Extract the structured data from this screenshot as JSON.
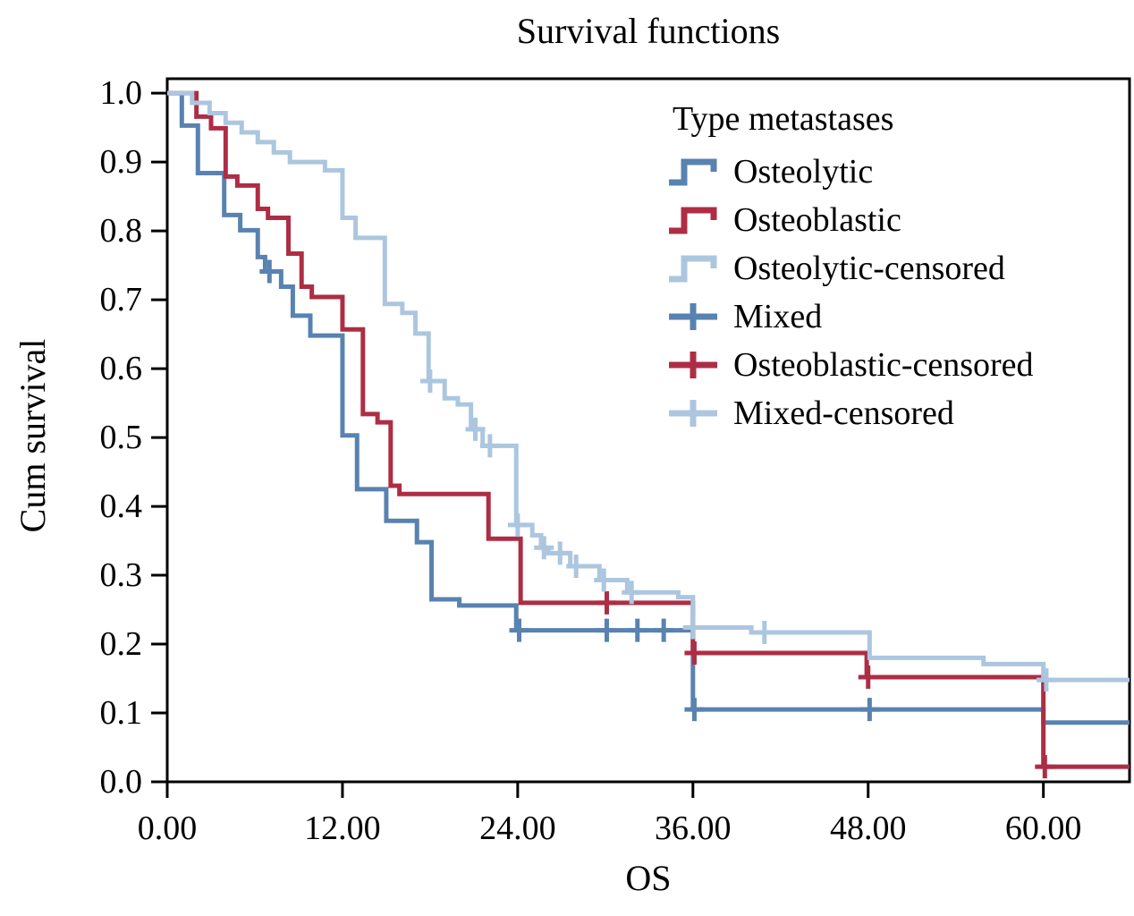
{
  "figure_title": "Survival functions",
  "colors": {
    "blue": "#5882B0",
    "red": "#AD2E44",
    "light_blue": "#ACC6DF",
    "axis": "#000000"
  },
  "legend": {
    "title": "Type metastases",
    "items": [
      {
        "label": "Osteolytic",
        "glyph": "step-icon",
        "color_key": "blue"
      },
      {
        "label": "Osteoblastic",
        "glyph": "step-icon",
        "color_key": "red"
      },
      {
        "label": "Osteolytic-censored",
        "glyph": "step-icon",
        "color_key": "light_blue"
      },
      {
        "label": "Mixed",
        "glyph": "plus-icon",
        "color_key": "blue"
      },
      {
        "label": "Osteoblastic-censored",
        "glyph": "plus-icon",
        "color_key": "red"
      },
      {
        "label": "Mixed-censored",
        "glyph": "plus-icon",
        "color_key": "light_blue"
      }
    ]
  },
  "chart_data": {
    "type": "line",
    "curve_style": "kaplan-meier-step",
    "title": "Survival functions",
    "xlabel": "OS",
    "ylabel": "Cum survival",
    "xlim": [
      0,
      65.9
    ],
    "ylim": [
      0,
      1.021
    ],
    "grid": false,
    "legend_position": "upper right",
    "x_ticks": [
      {
        "value": 0,
        "label": "0.00"
      },
      {
        "value": 12,
        "label": "12.00"
      },
      {
        "value": 24,
        "label": "24.00"
      },
      {
        "value": 36,
        "label": "36.00"
      },
      {
        "value": 48,
        "label": "48.00"
      },
      {
        "value": 60,
        "label": "60.00"
      }
    ],
    "y_ticks": [
      {
        "value": 0.0,
        "label": "0.0"
      },
      {
        "value": 0.1,
        "label": "0.1"
      },
      {
        "value": 0.2,
        "label": "0.2"
      },
      {
        "value": 0.3,
        "label": "0.3"
      },
      {
        "value": 0.4,
        "label": "0.4"
      },
      {
        "value": 0.5,
        "label": "0.5"
      },
      {
        "value": 0.6,
        "label": "0.6"
      },
      {
        "value": 0.7,
        "label": "0.7"
      },
      {
        "value": 0.8,
        "label": "0.8"
      },
      {
        "value": 0.9,
        "label": "0.9"
      },
      {
        "value": 1.0,
        "label": "1.0"
      }
    ],
    "series": [
      {
        "name": "Osteolytic",
        "color_key": "blue",
        "points": [
          [
            0,
            1.0
          ],
          [
            1.0,
            0.953
          ],
          [
            2.1,
            0.884
          ],
          [
            3.9,
            0.823
          ],
          [
            5.0,
            0.801
          ],
          [
            6.2,
            0.762
          ],
          [
            6.7,
            0.741
          ],
          [
            7.8,
            0.719
          ],
          [
            8.6,
            0.677
          ],
          [
            9.8,
            0.648
          ],
          [
            12.0,
            0.503
          ],
          [
            13.0,
            0.425
          ],
          [
            15.0,
            0.379
          ],
          [
            17.1,
            0.348
          ],
          [
            18.1,
            0.265
          ],
          [
            20.0,
            0.256
          ],
          [
            23.9,
            0.22
          ],
          [
            36.0,
            0.105
          ],
          [
            60.0,
            0.086
          ]
        ],
        "censored": [
          [
            7.0,
            0.741
          ],
          [
            24.1,
            0.22
          ],
          [
            30.1,
            0.22
          ],
          [
            32.2,
            0.22
          ],
          [
            34.0,
            0.22
          ],
          [
            36.1,
            0.105
          ],
          [
            48.1,
            0.105
          ]
        ]
      },
      {
        "name": "Osteoblastic",
        "color_key": "red",
        "points": [
          [
            0,
            1.0
          ],
          [
            2.0,
            0.966
          ],
          [
            3.0,
            0.949
          ],
          [
            4.0,
            0.879
          ],
          [
            4.8,
            0.866
          ],
          [
            6.2,
            0.832
          ],
          [
            6.9,
            0.819
          ],
          [
            8.3,
            0.767
          ],
          [
            9.2,
            0.719
          ],
          [
            9.9,
            0.704
          ],
          [
            12.0,
            0.657
          ],
          [
            13.4,
            0.534
          ],
          [
            14.4,
            0.522
          ],
          [
            15.3,
            0.43
          ],
          [
            15.9,
            0.418
          ],
          [
            22.0,
            0.353
          ],
          [
            24.2,
            0.26
          ],
          [
            36.0,
            0.187
          ],
          [
            47.9,
            0.152
          ],
          [
            60.0,
            0.022
          ]
        ],
        "censored": [
          [
            30.1,
            0.26
          ],
          [
            36.1,
            0.187
          ],
          [
            48.0,
            0.152
          ],
          [
            60.1,
            0.022
          ]
        ]
      },
      {
        "name": "Mixed",
        "color_key": "light_blue",
        "points": [
          [
            0,
            1.0
          ],
          [
            1.7,
            0.986
          ],
          [
            2.9,
            0.971
          ],
          [
            4.0,
            0.957
          ],
          [
            5.1,
            0.943
          ],
          [
            6.2,
            0.929
          ],
          [
            7.3,
            0.914
          ],
          [
            8.4,
            0.9
          ],
          [
            10.8,
            0.888
          ],
          [
            12.0,
            0.819
          ],
          [
            12.9,
            0.79
          ],
          [
            14.9,
            0.694
          ],
          [
            16.1,
            0.681
          ],
          [
            17.0,
            0.651
          ],
          [
            17.9,
            0.582
          ],
          [
            19.0,
            0.557
          ],
          [
            19.9,
            0.548
          ],
          [
            20.8,
            0.512
          ],
          [
            21.6,
            0.488
          ],
          [
            23.9,
            0.373
          ],
          [
            25.0,
            0.358
          ],
          [
            25.6,
            0.34
          ],
          [
            26.1,
            0.332
          ],
          [
            27.6,
            0.313
          ],
          [
            29.6,
            0.293
          ],
          [
            31.5,
            0.275
          ],
          [
            35.0,
            0.268
          ],
          [
            36.0,
            0.224
          ],
          [
            40.0,
            0.217
          ],
          [
            48.1,
            0.18
          ],
          [
            55.9,
            0.171
          ],
          [
            60.0,
            0.148
          ]
        ],
        "censored": [
          [
            18.0,
            0.582
          ],
          [
            21.1,
            0.512
          ],
          [
            22.1,
            0.488
          ],
          [
            24.0,
            0.373
          ],
          [
            25.8,
            0.34
          ],
          [
            26.9,
            0.332
          ],
          [
            28.0,
            0.313
          ],
          [
            29.9,
            0.293
          ],
          [
            31.8,
            0.275
          ],
          [
            36.0,
            0.224
          ],
          [
            40.9,
            0.217
          ],
          [
            60.2,
            0.148
          ]
        ]
      }
    ]
  }
}
